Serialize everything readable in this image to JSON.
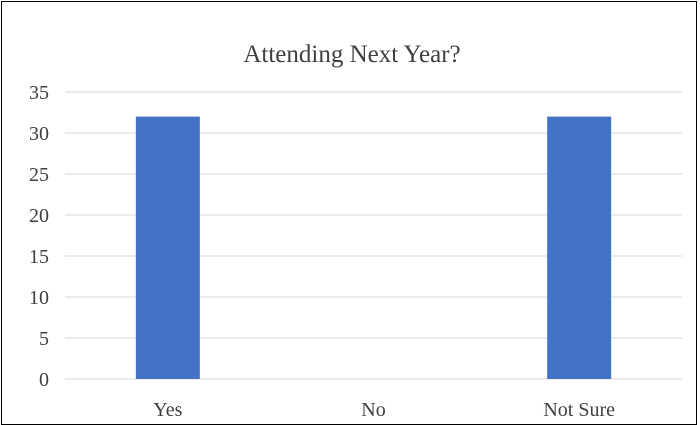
{
  "chart_data": {
    "type": "bar",
    "title": "Attending Next Year?",
    "xlabel": "",
    "ylabel": "",
    "categories": [
      "Yes",
      "No",
      "Not Sure"
    ],
    "values": [
      32,
      0,
      32
    ],
    "ylim": [
      0,
      35
    ],
    "yticks": [
      "0",
      "5",
      "10",
      "15",
      "20",
      "25",
      "30",
      "35"
    ],
    "grid": true,
    "legend": "none",
    "bar_color": "#4472C4",
    "gridline_color": "#D9D9D9",
    "text_color": "#404040"
  }
}
